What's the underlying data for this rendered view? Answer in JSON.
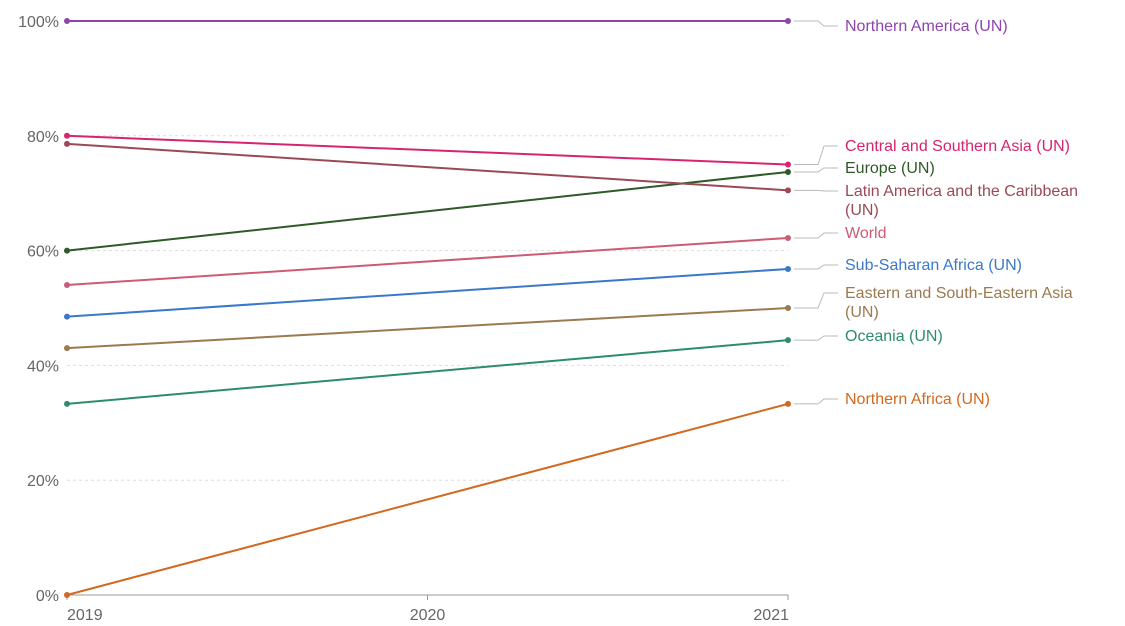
{
  "chart_data": {
    "type": "line",
    "x": [
      2019,
      2020,
      2021
    ],
    "x_tick_labels": [
      "2019",
      "2020",
      "2021"
    ],
    "y_tick_labels": [
      "0%",
      "20%",
      "40%",
      "60%",
      "80%",
      "100%"
    ],
    "y_ticks": [
      0,
      20,
      40,
      60,
      80,
      100
    ],
    "ylim": [
      0,
      100
    ],
    "grid": "horizontal dotted",
    "legend": "labels at right end of lines",
    "series": [
      {
        "name": "Northern America (UN)",
        "color": "#8e44ad",
        "points": [
          {
            "x": 2019,
            "y": 100
          },
          {
            "x": 2021,
            "y": 100
          }
        ],
        "label_lines": [
          "Northern America (UN)"
        ]
      },
      {
        "name": "Central and Southern Asia (UN)",
        "color": "#d6246e",
        "points": [
          {
            "x": 2019,
            "y": 80
          },
          {
            "x": 2021,
            "y": 75
          }
        ],
        "label_lines": [
          "Central and Southern Asia (UN)"
        ]
      },
      {
        "name": "Europe (UN)",
        "color": "#2d5a27",
        "points": [
          {
            "x": 2019,
            "y": 60
          },
          {
            "x": 2021,
            "y": 73.7
          }
        ],
        "label_lines": [
          "Europe (UN)"
        ]
      },
      {
        "name": "Latin America and the Caribbean (UN)",
        "color": "#9b4a55",
        "points": [
          {
            "x": 2019,
            "y": 78.6
          },
          {
            "x": 2021,
            "y": 70.5
          }
        ],
        "label_lines": [
          "Latin America and the Caribbean",
          "(UN)"
        ]
      },
      {
        "name": "World",
        "color": "#cc5c75",
        "points": [
          {
            "x": 2019,
            "y": 54
          },
          {
            "x": 2021,
            "y": 62.2
          }
        ],
        "label_lines": [
          "World"
        ]
      },
      {
        "name": "Sub-Saharan Africa (UN)",
        "color": "#3b78c9",
        "points": [
          {
            "x": 2019,
            "y": 48.5
          },
          {
            "x": 2021,
            "y": 56.8
          }
        ],
        "label_lines": [
          "Sub-Saharan Africa (UN)"
        ]
      },
      {
        "name": "Eastern and South-Eastern Asia (UN)",
        "color": "#9a7a4e",
        "points": [
          {
            "x": 2019,
            "y": 43
          },
          {
            "x": 2021,
            "y": 50
          }
        ],
        "label_lines": [
          "Eastern and South-Eastern Asia",
          "(UN)"
        ]
      },
      {
        "name": "Oceania (UN)",
        "color": "#2e8b6f",
        "points": [
          {
            "x": 2019,
            "y": 33.3
          },
          {
            "x": 2021,
            "y": 44.4
          }
        ],
        "label_lines": [
          "Oceania (UN)"
        ]
      },
      {
        "name": "Northern Africa (UN)",
        "color": "#d2691e",
        "points": [
          {
            "x": 2019,
            "y": 0
          },
          {
            "x": 2021,
            "y": 33.3
          }
        ],
        "label_lines": [
          "Northern Africa (UN)"
        ]
      }
    ]
  }
}
